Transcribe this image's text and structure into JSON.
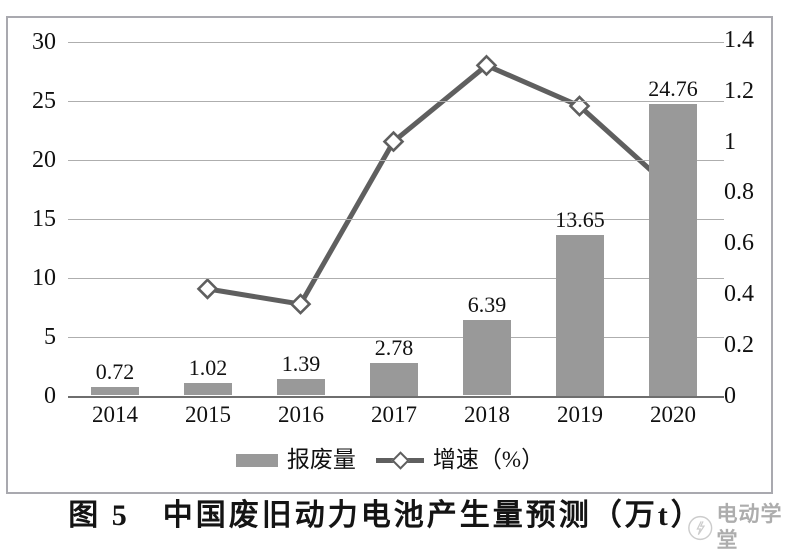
{
  "figure": {
    "caption": "图 5　中国废旧动力电池产生量预测（万t）",
    "watermark": "电动学堂"
  },
  "legend": {
    "bar_label": "报废量",
    "line_label": "增速（%）"
  },
  "chart_data": {
    "type": "bar",
    "subtype": "bar-line-combo",
    "categories": [
      "2014",
      "2015",
      "2016",
      "2017",
      "2018",
      "2019",
      "2020"
    ],
    "series": [
      {
        "name": "报废量",
        "type": "bar",
        "axis": "left",
        "values": [
          0.72,
          1.02,
          1.39,
          2.78,
          6.39,
          13.65,
          24.76
        ],
        "data_labels": [
          "0.72",
          "1.02",
          "1.39",
          "2.78",
          "6.39",
          "13.65",
          "24.76"
        ],
        "color": "#999999"
      },
      {
        "name": "增速（%）",
        "type": "line",
        "axis": "right",
        "values": [
          null,
          0.42,
          0.36,
          1.0,
          1.3,
          1.14,
          0.81
        ],
        "color": "#5f5f5f",
        "marker": "diamond",
        "marker_fill": "#ffffff"
      }
    ],
    "left_axis": {
      "min": 0,
      "max": 30,
      "tick_labels": [
        "30",
        "25",
        "20",
        "15",
        "10",
        "5",
        "0"
      ]
    },
    "right_axis": {
      "min": 0,
      "max": 1.4,
      "tick_labels": [
        "1.4",
        "1.2",
        "1",
        "0.8",
        "0.6",
        "0.4",
        "0.2",
        "0"
      ]
    },
    "grid": true,
    "legend_position": "bottom",
    "title": "图 5　中国废旧动力电池产生量预测（万t）"
  }
}
